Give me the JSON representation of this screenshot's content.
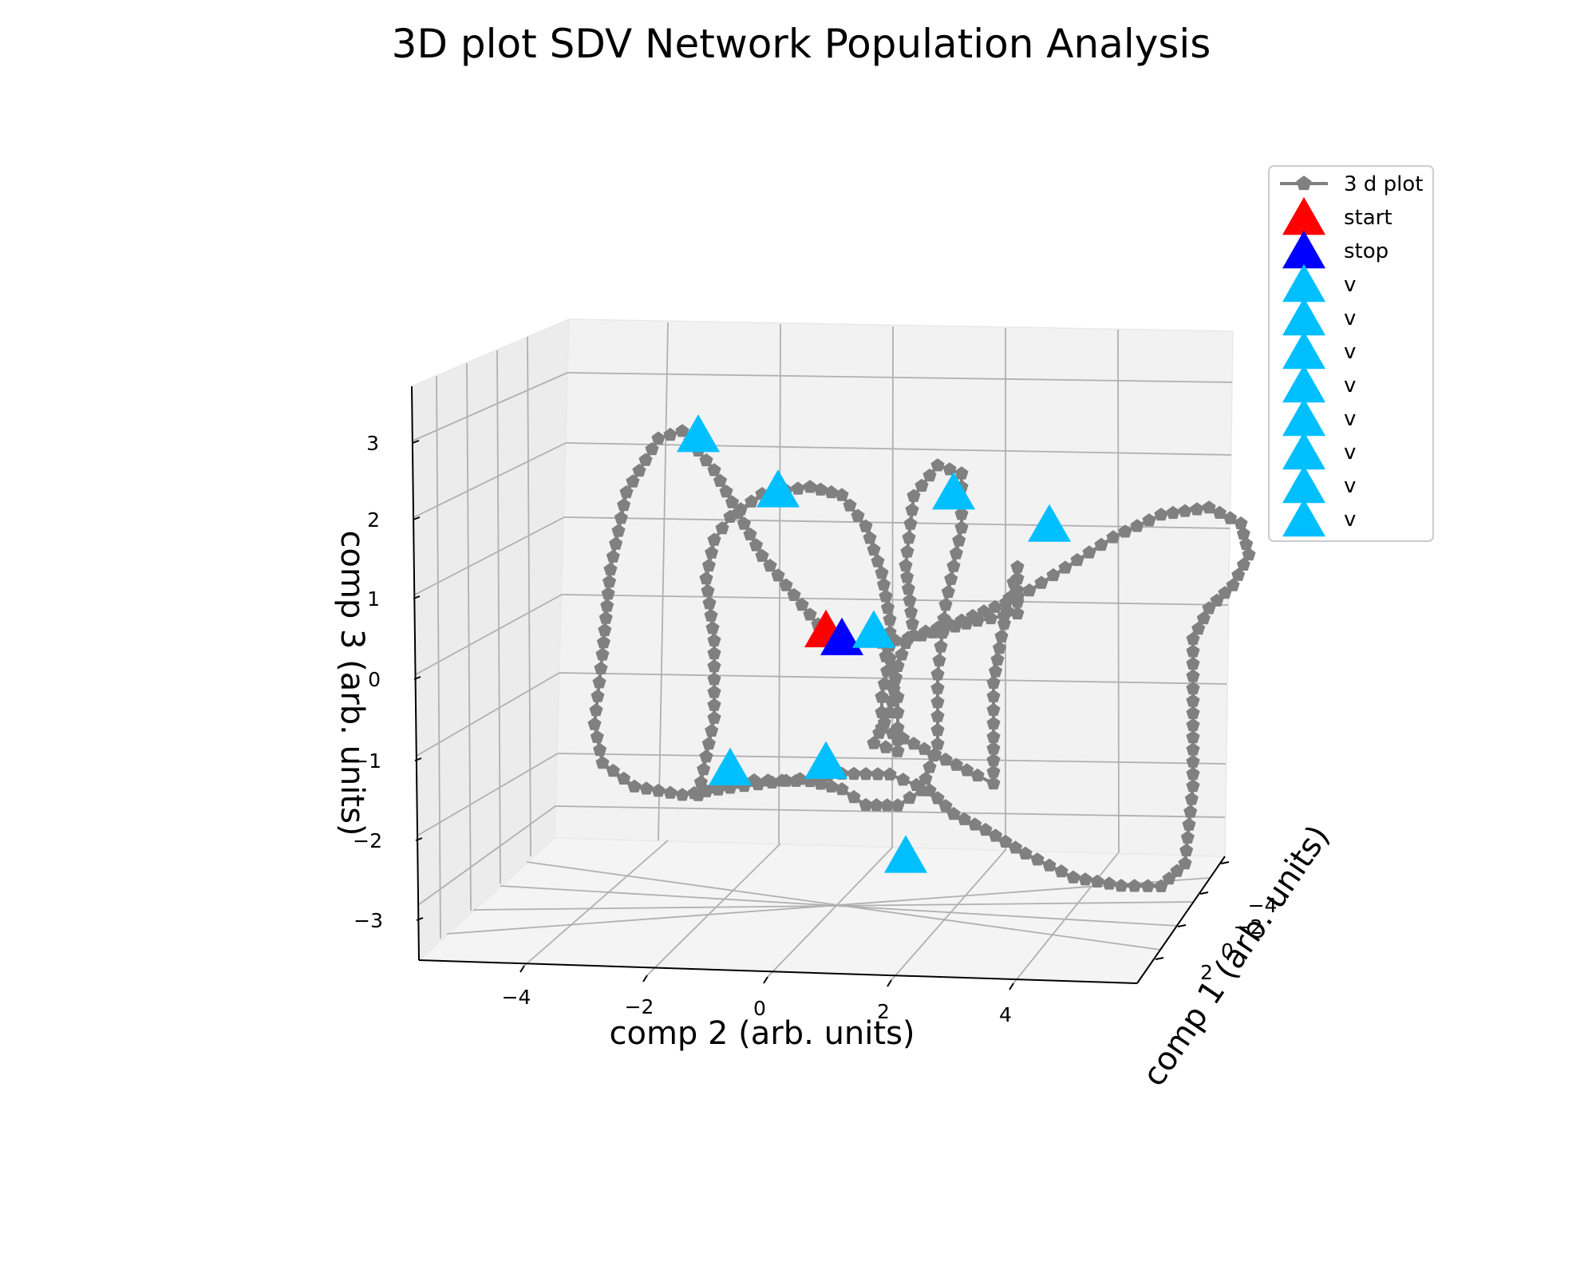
{
  "chart_data": {
    "type": "line",
    "projection": "3d",
    "title": "3D plot SDV Network Population Analysis",
    "xlabel": "comp 1 (arb. units)",
    "ylabel": "comp 2 (arb. units)",
    "zlabel": "comp 3 (arb. units)",
    "xticks": [
      -4,
      -2,
      0,
      2,
      4
    ],
    "yticks": [
      -4,
      -2,
      0,
      2,
      4
    ],
    "zticks": [
      -3,
      -2,
      -1,
      0,
      1,
      2,
      3
    ],
    "tick_labels": {
      "x": [
        "−4",
        "−2",
        "0",
        "2",
        "4"
      ],
      "y": [
        "−4",
        "−2",
        "0",
        "2",
        "4"
      ],
      "z": [
        "−3",
        "−2",
        "−1",
        "0",
        "1",
        "2",
        "3"
      ]
    },
    "xlim": [
      -5,
      5
    ],
    "ylim": [
      -5.5,
      5.5
    ],
    "zlim": [
      -3.5,
      3.5
    ],
    "grid": true,
    "legend_position": "top-right",
    "series": [
      {
        "name": "3 d plot",
        "style": "line-pentagon-markers",
        "color": "#808080",
        "points": [
          [
            0,
            -0.8,
            0.6
          ],
          [
            0,
            -1.6,
            1.6
          ],
          [
            0,
            -2.2,
            2.7
          ],
          [
            0,
            -2.6,
            3.2
          ],
          [
            0,
            -2.9,
            3.1
          ],
          [
            0,
            -3.3,
            2.4
          ],
          [
            0,
            -3.5,
            1.4
          ],
          [
            0,
            -3.6,
            0.3
          ],
          [
            0,
            -3.7,
            -0.6
          ],
          [
            0,
            -3.6,
            -1.1
          ],
          [
            0,
            -3.2,
            -1.4
          ],
          [
            0,
            -2.6,
            -1.5
          ],
          [
            0,
            -2.0,
            -1.4
          ],
          [
            0,
            -1.3,
            -1.3
          ],
          [
            0,
            -0.6,
            -1.2
          ],
          [
            0,
            0.0,
            -1.2
          ],
          [
            0,
            0.5,
            -1.4
          ],
          [
            0,
            0.8,
            -1.7
          ],
          [
            0,
            1.2,
            -1.9
          ],
          [
            0,
            1.7,
            -2.2
          ],
          [
            0,
            2.3,
            -2.5
          ],
          [
            0,
            2.9,
            -2.6
          ],
          [
            0,
            3.4,
            -2.6
          ],
          [
            0,
            3.7,
            -2.3
          ],
          [
            0,
            3.8,
            -1.3
          ],
          [
            0,
            3.8,
            -0.2
          ],
          [
            0,
            3.8,
            0.6
          ],
          [
            0,
            4.0,
            1.0
          ],
          [
            0,
            4.3,
            1.3
          ],
          [
            0,
            4.5,
            1.7
          ],
          [
            0,
            4.4,
            2.1
          ],
          [
            0,
            4.0,
            2.3
          ],
          [
            0,
            3.4,
            2.2
          ],
          [
            0,
            2.8,
            1.9
          ],
          [
            0,
            2.2,
            1.5
          ],
          [
            0,
            1.6,
            1.1
          ],
          [
            0,
            0.9,
            0.8
          ],
          [
            0,
            0.3,
            0.6
          ],
          [
            0,
            0.2,
            1.5
          ],
          [
            0,
            0.3,
            2.4
          ],
          [
            0,
            0.6,
            2.8
          ],
          [
            0,
            0.9,
            2.7
          ],
          [
            0,
            0.9,
            2.0
          ],
          [
            0,
            0.7,
            1.0
          ],
          [
            0,
            0.6,
            0.1
          ],
          [
            0,
            0.6,
            -0.8
          ],
          [
            0,
            0.4,
            -1.4
          ],
          [
            0,
            0.1,
            -1.6
          ],
          [
            0,
            -0.3,
            -1.6
          ],
          [
            0,
            -0.6,
            -1.4
          ],
          [
            0,
            -1.0,
            -1.3
          ],
          [
            0,
            -1.7,
            -1.3
          ],
          [
            0,
            -2.2,
            -1.4
          ],
          [
            0,
            -2.4,
            -1.5
          ],
          [
            0,
            -2.2,
            -0.5
          ],
          [
            0,
            -2.2,
            0.5
          ],
          [
            0,
            -2.3,
            1.3
          ],
          [
            0,
            -2.2,
            1.8
          ],
          [
            0,
            -2.0,
            2.1
          ],
          [
            0,
            -1.6,
            2.4
          ],
          [
            0,
            -1.0,
            2.5
          ],
          [
            0,
            -0.6,
            2.4
          ],
          [
            0,
            -0.3,
            2.0
          ],
          [
            0,
            -0.1,
            1.4
          ],
          [
            0,
            0.0,
            0.8
          ],
          [
            0,
            0.0,
            0.3
          ],
          [
            0,
            -0.1,
            -0.2
          ],
          [
            0,
            -0.1,
            -0.6
          ],
          [
            0,
            0.3,
            -0.8
          ],
          [
            0,
            0.7,
            -1.0
          ],
          [
            0,
            1.1,
            -1.2
          ],
          [
            0,
            1.3,
            -1.3
          ],
          [
            0,
            1.3,
            -0.7
          ],
          [
            0,
            1.3,
            0.0
          ],
          [
            0,
            1.4,
            0.6
          ],
          [
            0,
            1.5,
            1.1
          ],
          [
            0,
            1.6,
            1.5
          ],
          [
            0,
            1.6,
            0.9
          ],
          [
            0,
            1.1,
            0.8
          ],
          [
            0,
            0.4,
            0.6
          ],
          [
            0,
            -0.1,
            0.5
          ],
          [
            0,
            0.1,
            -0.2
          ],
          [
            0,
            0.1,
            -0.6
          ],
          [
            0,
            0.1,
            -0.9
          ],
          [
            0,
            -0.2,
            -0.8
          ],
          [
            0,
            0.0,
            -0.4
          ],
          [
            0,
            0.1,
            0.2
          ],
          [
            0,
            0.2,
            0.5
          ]
        ]
      },
      {
        "name": "start",
        "style": "triangle-marker",
        "color": "#ff0000",
        "points": [
          [
            0,
            -0.8,
            0.6
          ]
        ]
      },
      {
        "name": "stop",
        "style": "triangle-marker",
        "color": "#0000ff",
        "points": [
          [
            0,
            -0.6,
            0.5
          ]
        ]
      },
      {
        "name": "v",
        "style": "triangle-marker",
        "color": "#00bfff",
        "points": [
          [
            0,
            -2.4,
            3.1
          ]
        ]
      },
      {
        "name": "v",
        "style": "triangle-marker",
        "color": "#00bfff",
        "points": [
          [
            0,
            -1.4,
            2.4
          ]
        ]
      },
      {
        "name": "v",
        "style": "triangle-marker",
        "color": "#00bfff",
        "points": [
          [
            0,
            0.8,
            2.4
          ]
        ]
      },
      {
        "name": "v",
        "style": "triangle-marker",
        "color": "#00bfff",
        "points": [
          [
            0,
            2.0,
            2.0
          ]
        ]
      },
      {
        "name": "v",
        "style": "triangle-marker",
        "color": "#00bfff",
        "points": [
          [
            0,
            -0.2,
            0.6
          ]
        ]
      },
      {
        "name": "v",
        "style": "triangle-marker",
        "color": "#00bfff",
        "points": [
          [
            0,
            -2.0,
            -1.2
          ]
        ]
      },
      {
        "name": "v",
        "style": "triangle-marker",
        "color": "#00bfff",
        "points": [
          [
            0,
            -0.8,
            -1.1
          ]
        ]
      },
      {
        "name": "v",
        "style": "triangle-marker",
        "color": "#00bfff",
        "points": [
          [
            0,
            0.2,
            -2.3
          ]
        ]
      }
    ]
  }
}
